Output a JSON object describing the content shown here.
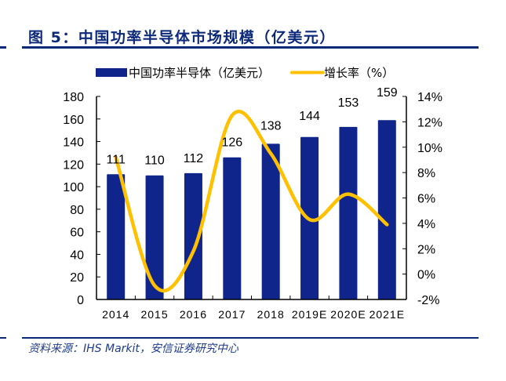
{
  "figure": {
    "title": "图 5：中国功率半导体市场规模（亿美元）",
    "source": "资料来源：IHS Markit，安信证券研究中心"
  },
  "colors": {
    "bar": "#0f258c",
    "line": "#ffc000",
    "rule": "#0d2a7a",
    "title": "#0d2a7a"
  },
  "chart_data": {
    "type": "bar",
    "title": "中国功率半导体市场规模（亿美元）",
    "categories": [
      "2014",
      "2015",
      "2016",
      "2017",
      "2018",
      "2019E",
      "2020E",
      "2021E"
    ],
    "series": [
      {
        "name": "中国功率半导体（亿美元）",
        "type": "bar",
        "axis": "left",
        "values": [
          111,
          110,
          112,
          126,
          138,
          144,
          153,
          159
        ],
        "data_labels": [
          "111",
          "110",
          "112",
          "126",
          "138",
          "144",
          "153",
          "159"
        ]
      },
      {
        "name": "增长率（%）",
        "type": "line",
        "axis": "right",
        "smooth": true,
        "values": [
          9.2,
          -0.9,
          1.8,
          12.5,
          9.5,
          4.3,
          6.3,
          3.9
        ]
      }
    ],
    "y_left": {
      "lim": [
        0,
        180
      ],
      "ticks": [
        "0",
        "20",
        "40",
        "60",
        "80",
        "100",
        "120",
        "140",
        "160",
        "180"
      ]
    },
    "y_right": {
      "lim": [
        -2,
        14
      ],
      "ticks": [
        "-2%",
        "0%",
        "2%",
        "4%",
        "6%",
        "8%",
        "10%",
        "12%",
        "14%"
      ]
    },
    "grid": false,
    "legend_position": "top-center"
  }
}
